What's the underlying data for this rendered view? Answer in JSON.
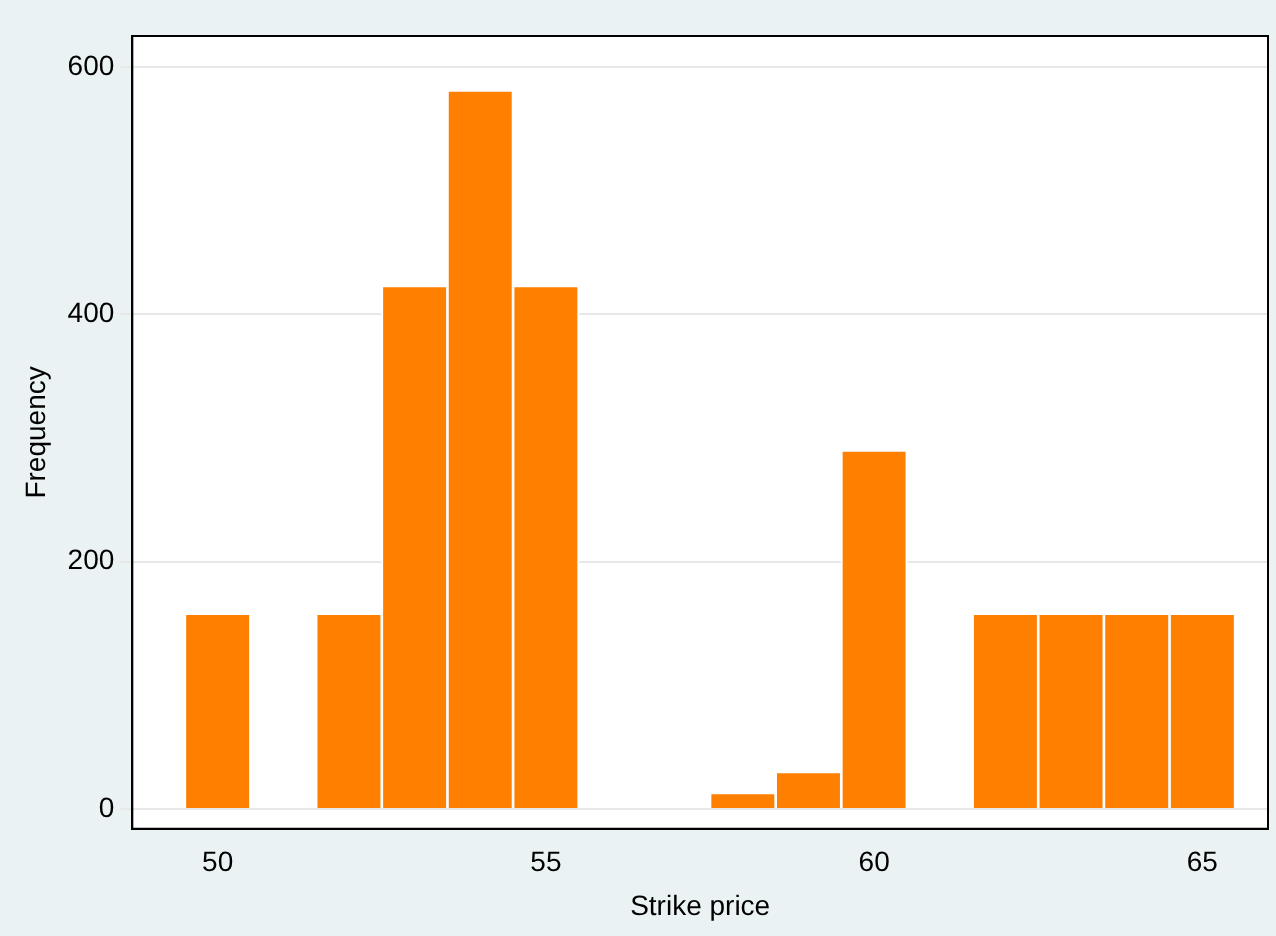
{
  "chart_data": {
    "type": "histogram",
    "xlabel": "Strike price",
    "ylabel": "Frequency",
    "bins": [
      49.5,
      50.5,
      51.5,
      52.5,
      53.5,
      54.5,
      55.5,
      56.5,
      57.5,
      58.5,
      59.5,
      60.5,
      61.5,
      62.5,
      63.5,
      64.5,
      65.5
    ],
    "values": [
      158,
      0,
      158,
      423,
      581,
      423,
      0,
      0,
      13,
      30,
      290,
      0,
      158,
      158,
      158,
      158
    ],
    "color": "#ff8000",
    "xlim": [
      48.7,
      66
    ],
    "xticks": [
      50,
      55,
      60,
      65
    ],
    "ylim": [
      -16,
      625
    ],
    "yticks": [
      0,
      200,
      400,
      600
    ],
    "grid": "y",
    "legend": false
  }
}
